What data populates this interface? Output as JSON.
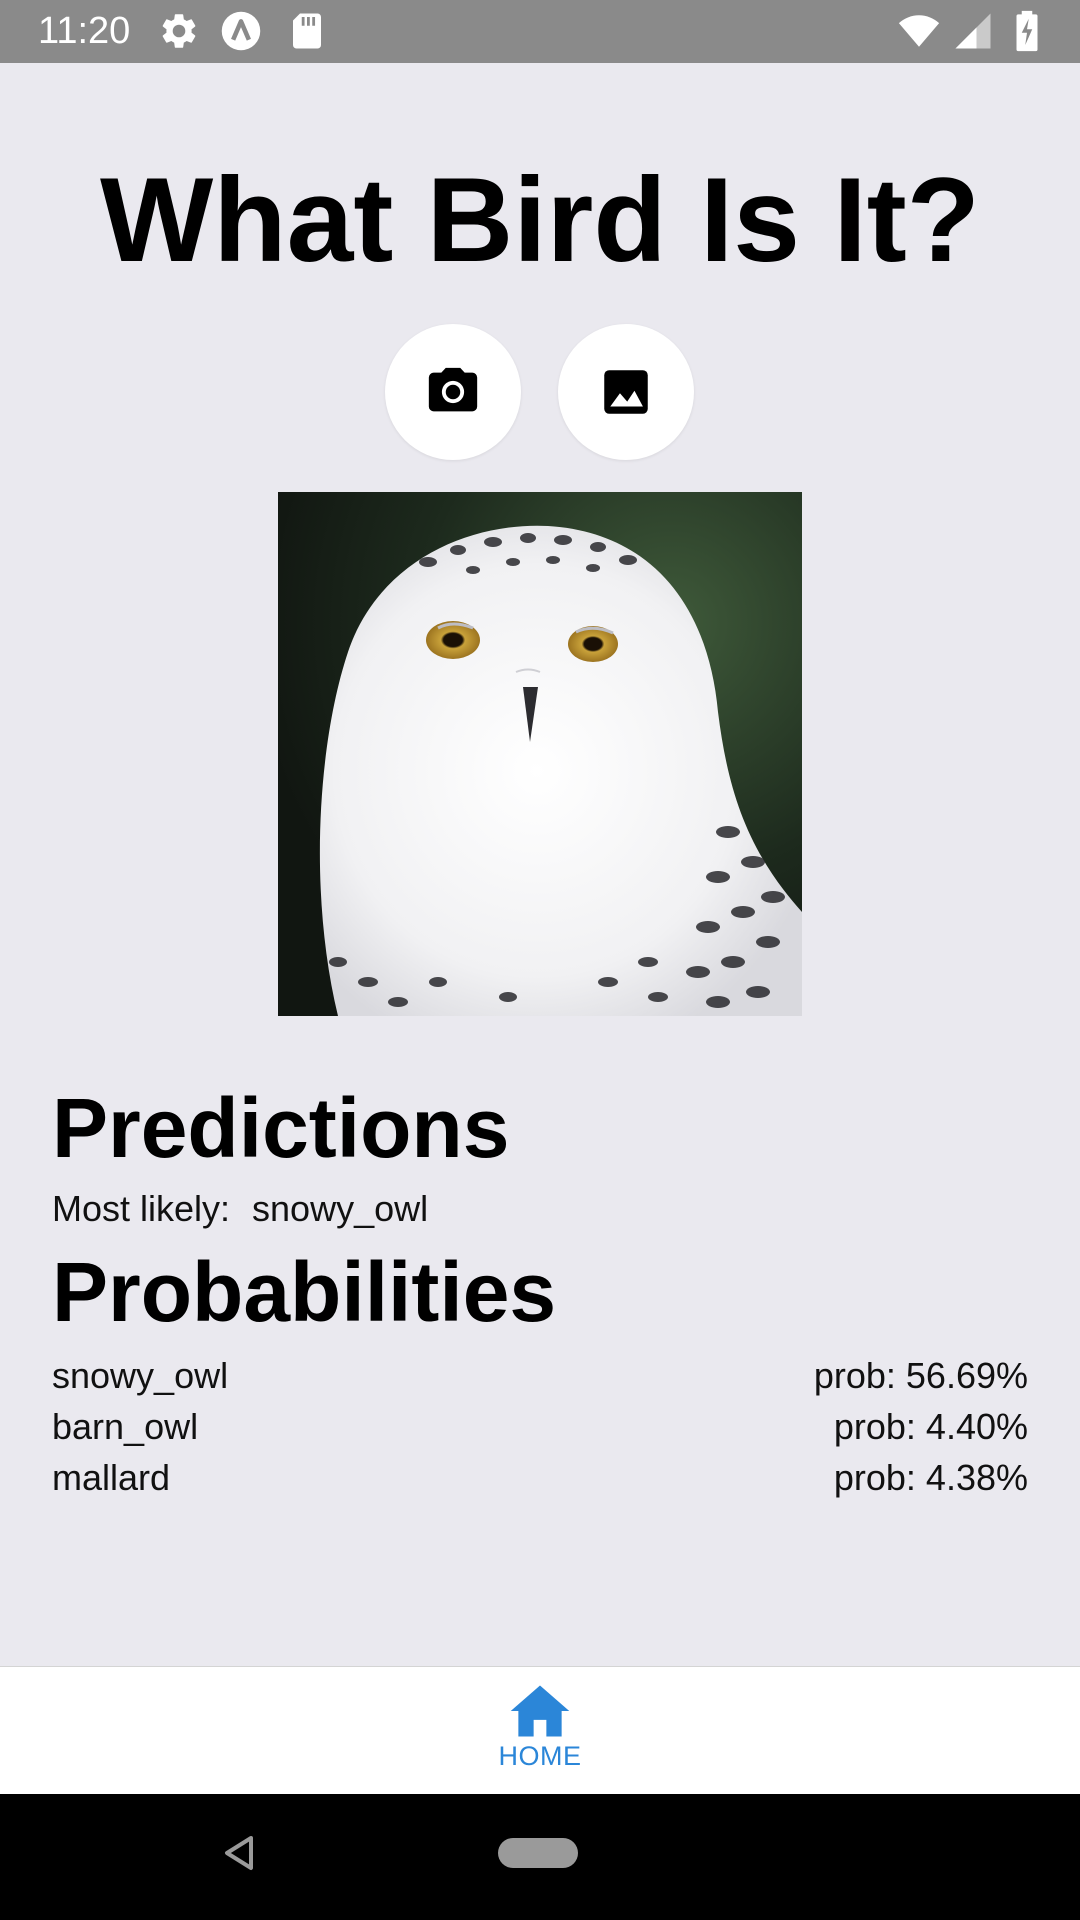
{
  "status_bar": {
    "time": "11:20",
    "left_icons": [
      "gear-icon",
      "app-a-icon",
      "sd-card-icon"
    ],
    "right_icons": [
      "wifi-icon",
      "signal-icon",
      "battery-charging-icon"
    ]
  },
  "app": {
    "title": "What Bird Is It?",
    "buttons": [
      {
        "name": "camera-button",
        "icon": "camera-icon"
      },
      {
        "name": "gallery-button",
        "icon": "image-icon"
      }
    ],
    "image": {
      "subject": "snowy owl photo"
    }
  },
  "predictions": {
    "heading": "Predictions",
    "most_likely_label": "Most likely:",
    "most_likely_value": "snowy_owl"
  },
  "probabilities": {
    "heading": "Probabilities",
    "items": [
      {
        "label": "snowy_owl",
        "prob": "prob: 56.69%"
      },
      {
        "label": "barn_owl",
        "prob": "prob: 4.40%"
      },
      {
        "label": "mallard",
        "prob": "prob: 4.38%"
      }
    ]
  },
  "bottom_nav": {
    "items": [
      {
        "label": "HOME",
        "icon": "home-icon",
        "active": true
      }
    ],
    "active_color": "#2b86d8"
  },
  "system_nav": {
    "icons": [
      "back-icon",
      "home-pill-icon"
    ]
  }
}
